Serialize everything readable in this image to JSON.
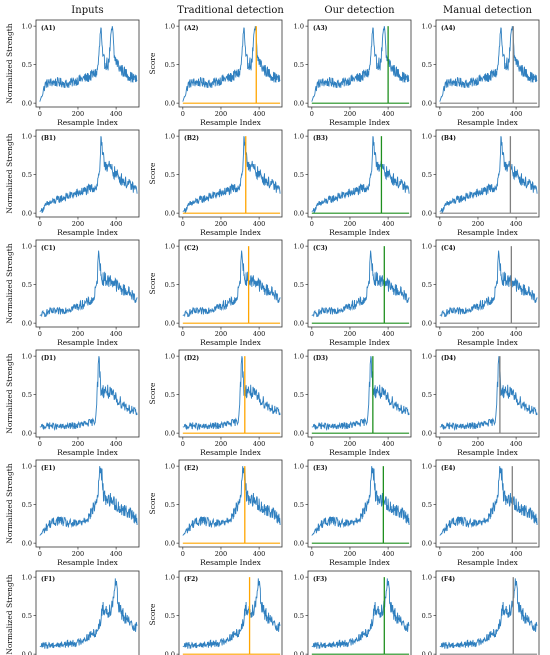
{
  "columns": [
    {
      "title": "Inputs"
    },
    {
      "title": "Traditional detection"
    },
    {
      "title": "Our detection"
    },
    {
      "title": "Manual detection"
    }
  ],
  "row_ids": [
    "A",
    "B",
    "C",
    "D",
    "E",
    "F"
  ],
  "colors": {
    "signal": "#2f7fbf",
    "traditional": "#ffa500",
    "ours": "#1f8f1f",
    "manual": "#808080",
    "axes": "#333333"
  },
  "chart_data": {
    "type": "line",
    "xlabel": "Resample Index",
    "ylabel_inputs": "Normalized Strength",
    "ylabel_score": "Score",
    "xlim": [
      -20,
      520
    ],
    "ylim": [
      -0.05,
      1.08
    ],
    "xticks": [
      0,
      200,
      400
    ],
    "yticks": [
      0.0,
      0.5,
      1.0
    ],
    "panels": [
      {
        "row": "A",
        "detections": {
          "traditional": 385,
          "ours": 400,
          "manual": 385
        },
        "profile": [
          [
            0,
            0.02
          ],
          [
            10,
            0.1
          ],
          [
            30,
            0.25
          ],
          [
            60,
            0.27
          ],
          [
            100,
            0.27
          ],
          [
            150,
            0.25
          ],
          [
            200,
            0.3
          ],
          [
            250,
            0.33
          ],
          [
            300,
            0.4
          ],
          [
            310,
            0.6
          ],
          [
            320,
            1.0
          ],
          [
            330,
            0.55
          ],
          [
            360,
            0.5
          ],
          [
            380,
            1.0
          ],
          [
            390,
            0.6
          ],
          [
            420,
            0.45
          ],
          [
            470,
            0.35
          ],
          [
            510,
            0.3
          ]
        ]
      },
      {
        "row": "B",
        "detections": {
          "traditional": 330,
          "ours": 365,
          "manual": 370
        },
        "profile": [
          [
            0,
            0.02
          ],
          [
            15,
            0.05
          ],
          [
            40,
            0.12
          ],
          [
            100,
            0.18
          ],
          [
            200,
            0.26
          ],
          [
            250,
            0.3
          ],
          [
            300,
            0.35
          ],
          [
            315,
            0.6
          ],
          [
            320,
            1.0
          ],
          [
            330,
            0.7
          ],
          [
            360,
            0.6
          ],
          [
            400,
            0.5
          ],
          [
            450,
            0.4
          ],
          [
            510,
            0.3
          ]
        ]
      },
      {
        "row": "C",
        "detections": {
          "traditional": 345,
          "ours": 380,
          "manual": 375
        },
        "profile": [
          [
            0,
            0.1
          ],
          [
            50,
            0.15
          ],
          [
            100,
            0.15
          ],
          [
            200,
            0.22
          ],
          [
            280,
            0.3
          ],
          [
            300,
            0.5
          ],
          [
            310,
            1.0
          ],
          [
            320,
            0.6
          ],
          [
            360,
            0.55
          ],
          [
            380,
            0.55
          ],
          [
            420,
            0.45
          ],
          [
            470,
            0.4
          ],
          [
            510,
            0.3
          ]
        ]
      },
      {
        "row": "D",
        "detections": {
          "traditional": 325,
          "ours": 320,
          "manual": 315
        },
        "profile": [
          [
            0,
            0.08
          ],
          [
            50,
            0.1
          ],
          [
            100,
            0.08
          ],
          [
            200,
            0.1
          ],
          [
            290,
            0.15
          ],
          [
            300,
            0.5
          ],
          [
            310,
            1.0
          ],
          [
            320,
            0.55
          ],
          [
            350,
            0.55
          ],
          [
            400,
            0.45
          ],
          [
            450,
            0.35
          ],
          [
            510,
            0.25
          ]
        ]
      },
      {
        "row": "E",
        "detections": {
          "traditional": 325,
          "ours": 375,
          "manual": 380
        },
        "profile": [
          [
            0,
            0.1
          ],
          [
            50,
            0.25
          ],
          [
            100,
            0.3
          ],
          [
            150,
            0.25
          ],
          [
            200,
            0.25
          ],
          [
            260,
            0.35
          ],
          [
            300,
            0.55
          ],
          [
            315,
            0.95
          ],
          [
            325,
            0.9
          ],
          [
            335,
            0.6
          ],
          [
            380,
            0.55
          ],
          [
            420,
            0.45
          ],
          [
            470,
            0.4
          ],
          [
            510,
            0.3
          ]
        ]
      },
      {
        "row": "F",
        "detections": {
          "traditional": 350,
          "ours": 380,
          "manual": 385
        },
        "profile": [
          [
            0,
            0.1
          ],
          [
            50,
            0.12
          ],
          [
            100,
            0.12
          ],
          [
            200,
            0.15
          ],
          [
            250,
            0.22
          ],
          [
            300,
            0.3
          ],
          [
            320,
            0.45
          ],
          [
            330,
            0.6
          ],
          [
            360,
            0.55
          ],
          [
            380,
            0.65
          ],
          [
            400,
            1.0
          ],
          [
            410,
            0.6
          ],
          [
            440,
            0.5
          ],
          [
            470,
            0.4
          ],
          [
            510,
            0.35
          ]
        ]
      }
    ]
  }
}
